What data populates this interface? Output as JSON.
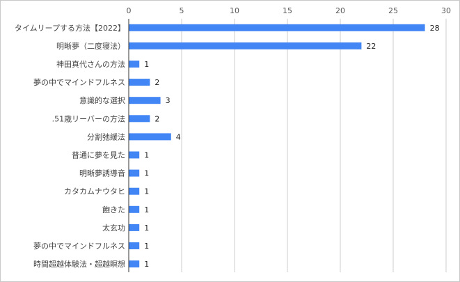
{
  "chart_data": {
    "type": "bar",
    "orientation": "horizontal",
    "categories": [
      "タイムリープする方法【2022】",
      "明晰夢（二度寝法）",
      "神田真代さんの方法",
      "夢の中でマインドフルネス",
      "意識的な選択",
      ".51歳リーバーの方法",
      "分割弛緩法",
      "普通に夢を見た",
      "明晰夢誘導音",
      "カタカムナウタヒ",
      "飽きた",
      "太玄功",
      "夢の中でマインドフルネス",
      "時間超越体験法・超越瞑想"
    ],
    "values": [
      28,
      22,
      1,
      2,
      3,
      2,
      4,
      1,
      1,
      1,
      1,
      1,
      1,
      1
    ],
    "xlim": [
      0,
      30
    ],
    "xticks": [
      "0",
      "5",
      "10",
      "15",
      "20",
      "25",
      "30"
    ],
    "xtick_values": [
      0,
      5,
      10,
      15,
      20,
      25,
      30
    ],
    "xaxis_position": "top",
    "grid": true,
    "legend": "none",
    "bar_color": "#4285f4",
    "title": "",
    "xlabel": "",
    "ylabel": ""
  }
}
